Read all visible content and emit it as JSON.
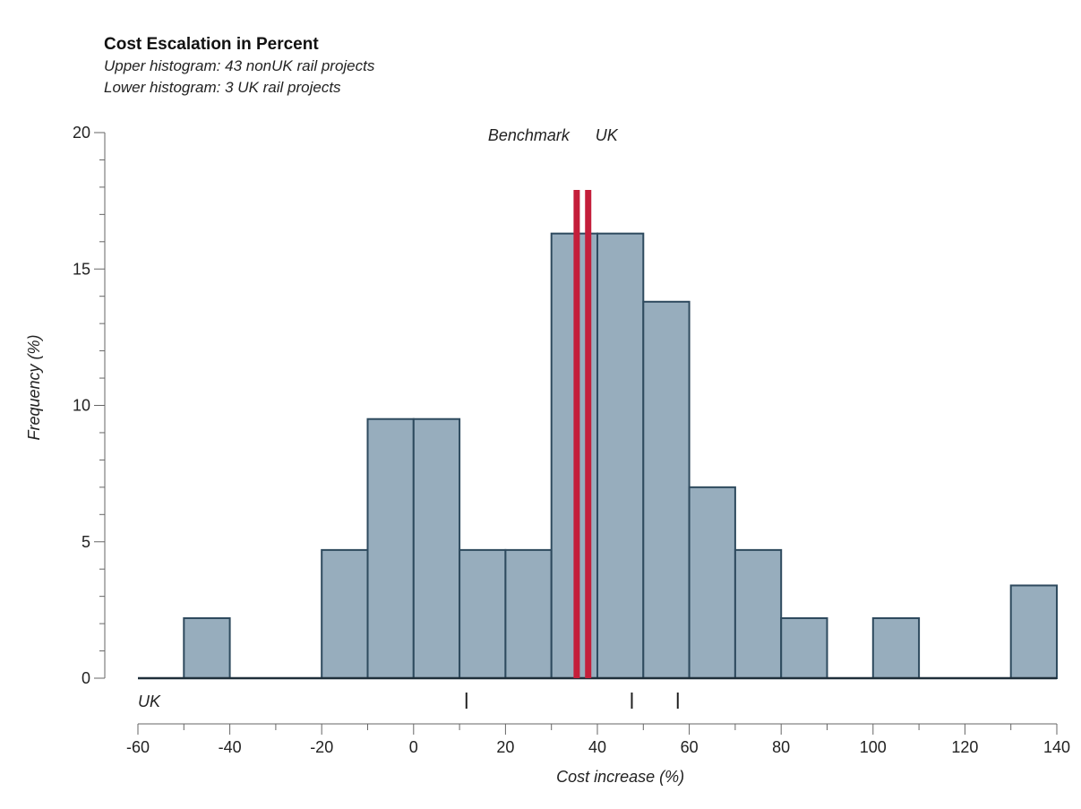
{
  "chart_data": {
    "type": "bar",
    "title": "Cost Escalation in Percent",
    "subtitles": [
      "Upper histogram: 43 nonUK rail projects",
      "Lower histogram: 3 UK rail projects"
    ],
    "xlabel": "Cost increase (%)",
    "ylabel": "Frequency (%)",
    "xlim": [
      -60,
      140
    ],
    "ylim": [
      0,
      20
    ],
    "xticks": [
      -60,
      -40,
      -20,
      0,
      20,
      40,
      60,
      80,
      100,
      120,
      140
    ],
    "yticks": [
      0,
      5,
      10,
      15,
      20
    ],
    "bin_width": 10,
    "bins": [
      {
        "start": -50,
        "value": 2.2
      },
      {
        "start": -20,
        "value": 4.7
      },
      {
        "start": -10,
        "value": 9.5
      },
      {
        "start": 0,
        "value": 9.5
      },
      {
        "start": 10,
        "value": 4.7
      },
      {
        "start": 20,
        "value": 4.7
      },
      {
        "start": 30,
        "value": 16.3
      },
      {
        "start": 40,
        "value": 16.3
      },
      {
        "start": 50,
        "value": 13.8
      },
      {
        "start": 60,
        "value": 7.0
      },
      {
        "start": 70,
        "value": 4.7
      },
      {
        "start": 80,
        "value": 2.2
      },
      {
        "start": 100,
        "value": 2.2
      },
      {
        "start": 130,
        "value": 3.4
      }
    ],
    "reference_lines": [
      {
        "label": "Benchmark",
        "x": 35.5,
        "color": "#c41e3a"
      },
      {
        "label": "UK",
        "x": 38,
        "color": "#c41e3a"
      }
    ],
    "uk_row_label": "UK",
    "uk_projects": [
      11.5,
      47.5,
      57.5
    ],
    "colors": {
      "bar_fill": "#97adbd",
      "bar_stroke": "#2e4a5e"
    }
  }
}
